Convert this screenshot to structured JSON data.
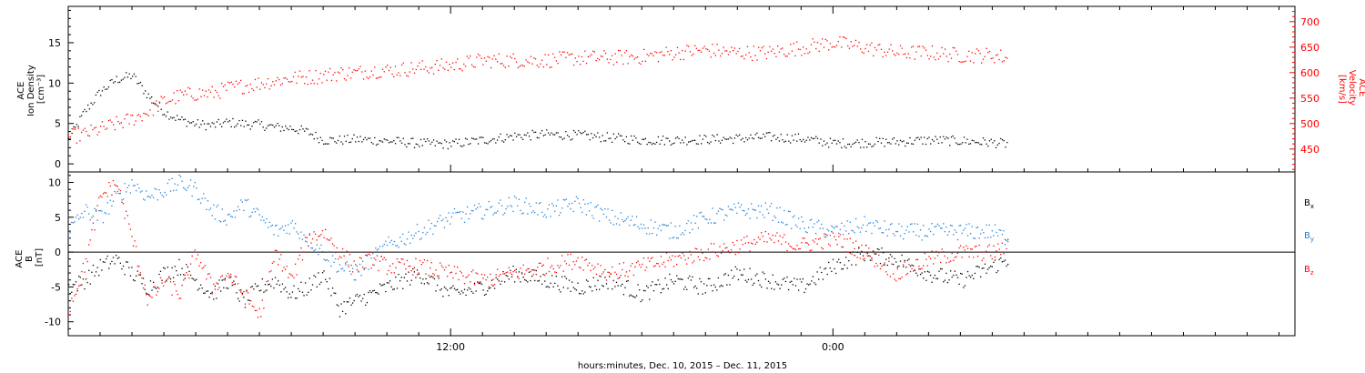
{
  "chart_data": [
    {
      "type": "scatter",
      "panel": "top",
      "ylabel_left_lines": [
        "ACE",
        "Ion Density",
        "[cm⁻³]"
      ],
      "ylabel_right_lines": [
        "ACE",
        "Velocity",
        "[km/s]"
      ],
      "left_ylim": [
        -1,
        19.5
      ],
      "left_ticks": [
        0,
        5,
        10,
        15
      ],
      "right_ylim": [
        405,
        730
      ],
      "right_ticks": [
        450,
        500,
        550,
        600,
        650,
        700
      ],
      "x_unit": "hours since 0:00 Dec. 10, 2015",
      "xlim": [
        0,
        38.5
      ],
      "series": [
        {
          "color": "#000000",
          "axis": "left",
          "x": [
            0.0,
            0.5,
            1.0,
            1.5,
            2.0,
            2.5,
            3.0,
            3.5,
            4.0,
            4.5,
            5.0,
            5.5,
            6.0,
            6.5,
            7.0,
            7.5,
            8.0,
            8.5,
            9.0,
            9.5,
            10.0,
            11.0,
            12.0,
            13.0,
            14.0,
            15.0,
            16.0,
            17.0,
            18.0,
            19.0,
            20.0,
            21.0,
            22.0,
            23.0,
            24.0,
            25.0,
            26.0,
            27.0,
            28.0,
            29.0,
            29.5
          ],
          "y": [
            3.0,
            6.5,
            9.0,
            10.5,
            11.0,
            8.5,
            6.5,
            5.5,
            5.0,
            4.8,
            5.2,
            5.0,
            4.9,
            4.6,
            4.5,
            4.0,
            3.0,
            3.0,
            3.1,
            3.0,
            2.9,
            2.6,
            2.5,
            3.0,
            3.5,
            3.7,
            3.6,
            3.3,
            3.0,
            3.0,
            3.1,
            3.2,
            3.4,
            3.2,
            2.6,
            2.7,
            2.8,
            3.0,
            2.9,
            2.7,
            2.5
          ]
        },
        {
          "color": "#ff0000",
          "axis": "right",
          "x": [
            0.0,
            0.5,
            1.0,
            1.5,
            2.0,
            2.5,
            3.0,
            3.5,
            4.0,
            4.5,
            5.0,
            5.5,
            6.0,
            6.5,
            7.0,
            7.5,
            8.0,
            8.5,
            9.0,
            9.5,
            10.0,
            11.0,
            12.0,
            13.0,
            14.0,
            15.0,
            16.0,
            17.0,
            18.0,
            19.0,
            20.0,
            21.0,
            22.0,
            23.0,
            24.0,
            25.0,
            26.0,
            27.0,
            28.0,
            29.0,
            29.5
          ],
          "y": [
            475,
            480,
            490,
            500,
            510,
            525,
            545,
            555,
            560,
            560,
            570,
            575,
            580,
            585,
            590,
            592,
            595,
            600,
            600,
            605,
            605,
            610,
            615,
            625,
            625,
            625,
            630,
            630,
            632,
            640,
            645,
            640,
            640,
            650,
            660,
            650,
            640,
            640,
            635,
            635,
            630
          ]
        }
      ]
    },
    {
      "type": "scatter",
      "panel": "bottom",
      "ylabel_left_lines": [
        "ACE",
        "B",
        "[nT]"
      ],
      "ylim": [
        -12,
        11.5
      ],
      "y_ticks": [
        -10,
        -5,
        0,
        5,
        10
      ],
      "zero_line": true,
      "x_unit": "hours since 0:00 Dec. 10, 2015",
      "xlim": [
        0,
        38.5
      ],
      "series": [
        {
          "name": "Bx",
          "color": "#000000",
          "x": [
            0.0,
            0.5,
            1.0,
            1.5,
            2.0,
            2.5,
            3.0,
            3.5,
            4.0,
            4.5,
            5.0,
            5.5,
            6.0,
            6.5,
            7.0,
            7.5,
            8.0,
            8.5,
            9.0,
            9.5,
            10.0,
            11.0,
            12.0,
            13.0,
            14.0,
            15.0,
            16.0,
            17.0,
            18.0,
            19.0,
            20.0,
            21.0,
            22.0,
            23.0,
            24.0,
            25.0,
            26.0,
            27.0,
            28.0,
            29.0,
            29.5
          ],
          "y": [
            -5,
            -4,
            -2,
            -1,
            -3,
            -5,
            -3,
            -2,
            -4,
            -6,
            -4,
            -7,
            -5,
            -4,
            -6,
            -5,
            -3,
            -8,
            -7,
            -6,
            -5,
            -3,
            -6,
            -5,
            -3,
            -4,
            -5,
            -4,
            -6,
            -4,
            -5,
            -3,
            -4,
            -5,
            -2,
            0,
            -1,
            -3,
            -4,
            -2,
            -1
          ]
        },
        {
          "name": "By",
          "color": "#1f7fd8",
          "x": [
            0.0,
            0.5,
            1.0,
            1.5,
            2.0,
            2.5,
            3.0,
            3.5,
            4.0,
            4.5,
            5.0,
            5.5,
            6.0,
            6.5,
            7.0,
            7.5,
            8.0,
            8.5,
            9.0,
            9.5,
            10.0,
            11.0,
            12.0,
            13.0,
            14.0,
            15.0,
            16.0,
            17.0,
            18.0,
            19.0,
            20.0,
            21.0,
            22.0,
            23.0,
            24.0,
            25.0,
            26.0,
            27.0,
            28.0,
            29.0,
            29.5
          ],
          "y": [
            3,
            6,
            5,
            8,
            10,
            8,
            9,
            10,
            9,
            6,
            5,
            7,
            5,
            3,
            4,
            2,
            0,
            -2,
            -3,
            -1,
            1,
            3,
            5,
            6,
            7,
            6,
            7,
            5,
            4,
            3,
            5,
            6,
            6,
            4,
            3,
            4,
            3,
            3,
            3,
            3,
            2
          ]
        },
        {
          "name": "Bz",
          "color": "#ff0000",
          "x": [
            0.0,
            0.5,
            1.0,
            1.5,
            2.0,
            2.5,
            3.0,
            3.5,
            4.0,
            4.5,
            5.0,
            5.5,
            6.0,
            6.5,
            7.0,
            7.5,
            8.0,
            8.5,
            9.0,
            9.5,
            10.0,
            11.0,
            12.0,
            13.0,
            14.0,
            15.0,
            16.0,
            17.0,
            18.0,
            19.0,
            20.0,
            21.0,
            22.0,
            23.0,
            24.0,
            25.0,
            26.0,
            27.0,
            28.0,
            29.0,
            29.5
          ],
          "y": [
            -8,
            -2,
            8,
            10,
            2,
            -7,
            -4,
            -6,
            0,
            -5,
            -3,
            -6,
            -9,
            0,
            -4,
            2,
            3,
            0,
            -2,
            -1,
            -2,
            -2,
            -3,
            -4,
            -3,
            -2,
            -1,
            -3,
            -2,
            -1,
            0,
            1,
            2,
            1,
            2,
            0,
            -3,
            -1,
            0,
            0,
            1
          ]
        }
      ]
    }
  ],
  "legend": {
    "bx_base": "B",
    "bx_sub": "x",
    "by_base": "B",
    "by_sub": "y",
    "bz_base": "B",
    "bz_sub": "z"
  },
  "x_axis": {
    "tick_labels": [
      {
        "hour": 12,
        "label": "12:00"
      },
      {
        "hour": 24,
        "label": "0:00"
      }
    ],
    "minor_tick_hours": [
      1,
      2,
      3,
      4,
      5,
      6,
      7,
      8,
      9,
      10,
      11,
      13,
      14,
      15,
      16,
      17,
      18,
      19,
      20,
      21,
      22,
      23,
      25,
      26,
      27,
      28,
      29,
      30,
      31,
      32,
      33,
      34,
      35,
      36,
      37,
      38
    ],
    "label": "hours:minutes, Dec. 10, 2015 – Dec. 11, 2015"
  },
  "colors": {
    "black": "#000000",
    "red": "#ff0000",
    "blue": "#1f7fd8"
  }
}
